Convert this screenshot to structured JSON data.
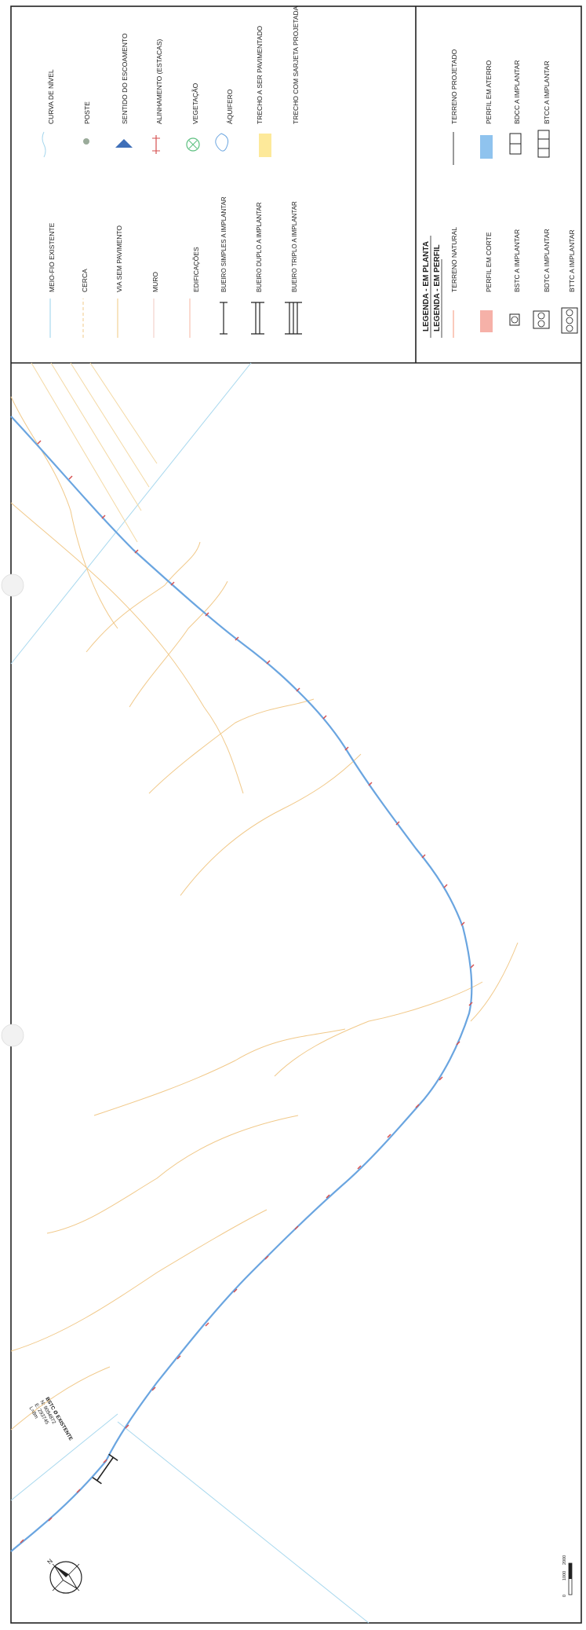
{
  "legend_plan": {
    "title": "LEGENDA - EM PLANTA",
    "left_items": [
      {
        "label": "MEIO-FIO EXISTENTE",
        "icon": "meio-fio-icon"
      },
      {
        "label": "CERCA",
        "icon": "cerca-icon"
      },
      {
        "label": "VIA SEM PAVIMENTO",
        "icon": "via-sem-pavimento-icon"
      },
      {
        "label": "MURO",
        "icon": "muro-icon"
      },
      {
        "label": "EDIFICAÇÕES",
        "icon": "edificacoes-icon"
      },
      {
        "label": "BUEIRO SIMPLES A IMPLANTAR",
        "icon": "bueiro-simples-icon"
      },
      {
        "label": "BUEIRO DUPLO A IMPLANTAR",
        "icon": "bueiro-duplo-icon"
      },
      {
        "label": "BUEIRO TRIPLO A IMPLANTAR",
        "icon": "bueiro-triplo-icon"
      }
    ],
    "right_items": [
      {
        "label": "CURVA DE NÍVEL",
        "icon": "curva-de-nivel-icon"
      },
      {
        "label": "POSTE",
        "icon": "poste-icon"
      },
      {
        "label": "SENTIDO DO ESCOAMENTO",
        "icon": "sentido-escoamento-icon"
      },
      {
        "label": "ALINHAMENTO (ESTACAS)",
        "icon": "alinhamento-estacas-icon"
      },
      {
        "label": "VEGETAÇÃO",
        "icon": "vegetacao-icon"
      },
      {
        "label": "ÁQUIFERO",
        "icon": "aquifero-icon"
      },
      {
        "label": "TRECHO A SER PAVIMENTADO",
        "icon": "trecho-pavimentado-icon"
      },
      {
        "label": "TRECHO COM SARJETA PROJETADA",
        "icon": "sarjeta-icon"
      }
    ]
  },
  "legend_profile": {
    "title": "LEGENDA - EM PERFIL",
    "left_items": [
      {
        "label": "TERRENO NATURAL",
        "icon": "terreno-natural-icon"
      },
      {
        "label": "PERFIL EM CORTE",
        "icon": "perfil-corte-icon"
      },
      {
        "label": "BSTC A IMPLANTAR",
        "icon": "bstc-icon"
      },
      {
        "label": "BDTC A IMPLANTAR",
        "icon": "bdtc-icon"
      },
      {
        "label": "BTTC A IMPLANTAR",
        "icon": "bttc-icon"
      }
    ],
    "right_items": [
      {
        "label": "TERRENO PROJETADO",
        "icon": "terreno-projetado-icon"
      },
      {
        "label": "PERFIL EM ATERRO",
        "icon": "perfil-aterro-icon"
      },
      {
        "label": "BDCC A IMPLANTAR",
        "icon": "bdcc-icon"
      },
      {
        "label": "BTCC A IMPLANTAR",
        "icon": "btcc-icon"
      }
    ]
  },
  "culvert_note": {
    "lines": [
      "BSTC Ø EXISTENTE",
      "N: 9094872",
      "E: 293745",
      "L=8m"
    ]
  },
  "scale_bar": {
    "labels": [
      "0",
      "1000",
      "2000"
    ]
  },
  "colors": {
    "border": "#222222",
    "alignment": "#6aa5e0",
    "contour": "#f1c98a",
    "road": "#f4d9a4",
    "curb": "#a8d8ee",
    "paved": "#fde99a",
    "natural_terrain": "#f7b4a0",
    "cut": "#f6b1a8",
    "fill": "#8fc3ee",
    "post": "#9aab9a",
    "flow": "#3f6fb8",
    "vegetation": "#5cbf7f",
    "station_red": "#d65050"
  }
}
